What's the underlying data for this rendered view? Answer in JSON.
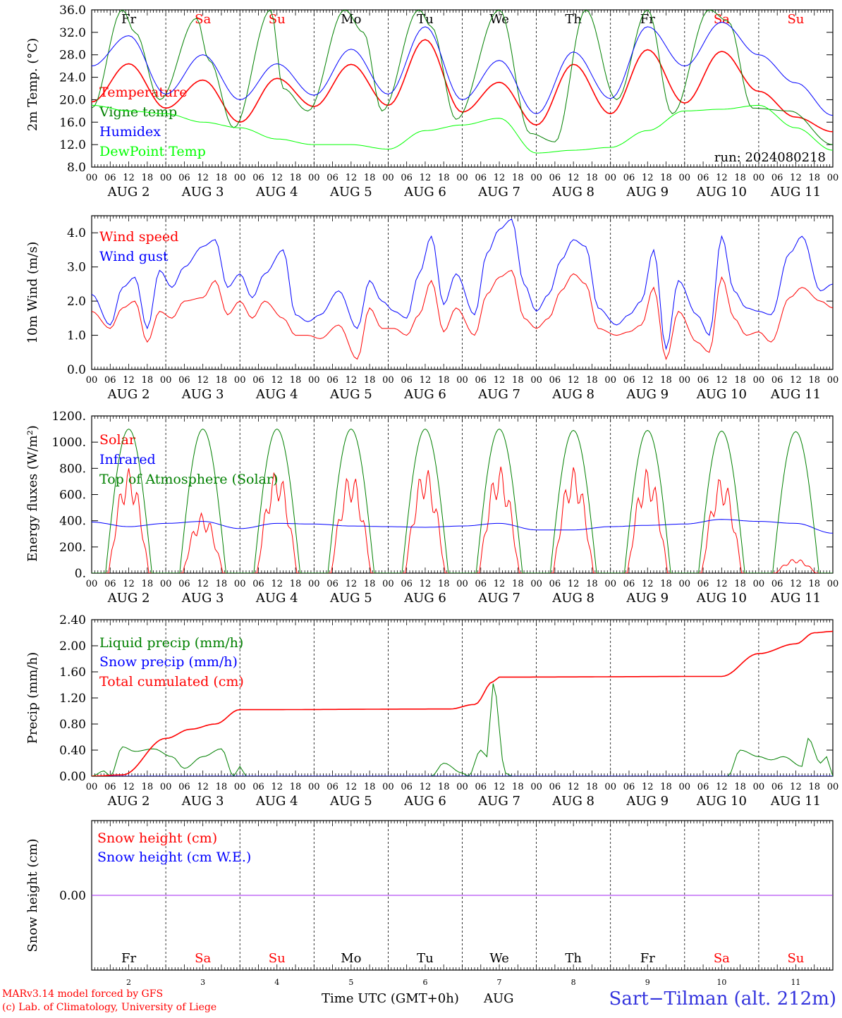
{
  "chart_data": [
    {
      "type": "line",
      "ylabel": "2m Temp. (°C)",
      "ylim": [
        8.0,
        36.0
      ],
      "yticks": [
        "8.0",
        "12.0",
        "16.0",
        "20.0",
        "24.0",
        "28.0",
        "32.0",
        "36.0"
      ],
      "xlim_hours": [
        0,
        240
      ],
      "annotation": "run: 2024080218",
      "series": [
        {
          "name": "Temperature",
          "color": "#ff0000",
          "x": [
            0,
            12,
            24,
            36,
            48,
            60,
            72,
            84,
            96,
            108,
            120,
            132,
            144,
            156,
            168,
            180,
            192,
            204,
            216,
            228,
            240
          ],
          "values": [
            19.6,
            26.4,
            18.5,
            23.5,
            16.0,
            23.8,
            18.8,
            26.3,
            19.0,
            30.7,
            17.8,
            23.1,
            15.5,
            26.3,
            17.5,
            28.9,
            19.4,
            28.6,
            21.5,
            16.9,
            14.3
          ]
        },
        {
          "name": "Vigne temp",
          "color": "#008000",
          "x": [
            0,
            10,
            14,
            22,
            34,
            38,
            46,
            58,
            62,
            70,
            82,
            88,
            94,
            106,
            110,
            118,
            132,
            142,
            150,
            160,
            170,
            180,
            188,
            200,
            206,
            214,
            226,
            240
          ],
          "values": [
            18.5,
            36.0,
            32.0,
            20.0,
            34.5,
            27.0,
            15.0,
            36.0,
            22.0,
            18.0,
            36.0,
            32.0,
            18.0,
            36.0,
            33.0,
            16.5,
            36.0,
            14.0,
            12.5,
            36.0,
            20.0,
            36.0,
            17.5,
            36.0,
            34.0,
            18.5,
            18.0,
            12.0
          ]
        },
        {
          "name": "Humidex",
          "color": "#0000ff",
          "x": [
            0,
            12,
            24,
            36,
            48,
            60,
            72,
            84,
            96,
            108,
            120,
            132,
            144,
            156,
            168,
            180,
            192,
            204,
            216,
            228,
            240
          ],
          "values": [
            26.0,
            31.4,
            21.0,
            28.0,
            20.0,
            26.4,
            20.8,
            29.0,
            21.0,
            33.0,
            20.0,
            27.0,
            17.5,
            28.5,
            20.2,
            33.0,
            26.0,
            33.8,
            28.0,
            23.0,
            17.2
          ]
        },
        {
          "name": "DewPoint Temp",
          "color": "#00ff00",
          "x": [
            0,
            12,
            24,
            36,
            48,
            60,
            72,
            84,
            96,
            108,
            120,
            132,
            144,
            156,
            168,
            180,
            192,
            204,
            216,
            228,
            240
          ],
          "values": [
            19.0,
            18.0,
            17.5,
            16.0,
            15.0,
            13.0,
            12.0,
            12.0,
            11.2,
            14.5,
            15.5,
            16.7,
            10.5,
            11.0,
            11.5,
            14.5,
            18.0,
            18.3,
            19.0,
            15.0,
            11.0
          ]
        }
      ]
    },
    {
      "type": "line",
      "ylabel": "10m Wind (m/s)",
      "ylim": [
        0.0,
        4.5
      ],
      "yticks": [
        "0.0",
        "1.0",
        "2.0",
        "3.0",
        "4.0"
      ],
      "xlim_hours": [
        0,
        240
      ],
      "series": [
        {
          "name": "Wind speed",
          "color": "#ff0000",
          "x": [
            0,
            6,
            10,
            14,
            18,
            22,
            26,
            30,
            36,
            40,
            44,
            48,
            52,
            56,
            62,
            66,
            70,
            74,
            80,
            86,
            90,
            94,
            98,
            102,
            106,
            110,
            114,
            118,
            124,
            128,
            132,
            136,
            140,
            144,
            148,
            152,
            156,
            160,
            164,
            170,
            174,
            178,
            182,
            186,
            190,
            196,
            200,
            204,
            208,
            212,
            216,
            220,
            226,
            230,
            236,
            240
          ],
          "values": [
            1.7,
            1.2,
            1.8,
            2.0,
            0.8,
            1.7,
            1.5,
            2.0,
            2.1,
            2.6,
            1.6,
            2.0,
            1.5,
            2.0,
            1.5,
            1.0,
            1.0,
            0.9,
            1.3,
            0.3,
            1.8,
            1.2,
            1.2,
            1.0,
            1.6,
            2.6,
            1.1,
            1.8,
            1.0,
            2.2,
            2.7,
            2.9,
            1.5,
            1.2,
            1.5,
            2.3,
            2.8,
            2.5,
            1.2,
            1.0,
            1.1,
            1.3,
            2.4,
            0.3,
            1.7,
            0.8,
            0.5,
            2.7,
            1.5,
            1.0,
            1.1,
            0.8,
            2.1,
            2.4,
            2.0,
            1.8
          ]
        },
        {
          "name": "Wind gust",
          "color": "#0000ff",
          "x": [
            0,
            6,
            10,
            14,
            18,
            22,
            26,
            30,
            36,
            40,
            44,
            48,
            52,
            56,
            62,
            66,
            70,
            74,
            80,
            86,
            90,
            94,
            98,
            102,
            106,
            110,
            114,
            118,
            124,
            128,
            132,
            136,
            140,
            144,
            148,
            152,
            156,
            160,
            164,
            170,
            174,
            178,
            182,
            186,
            190,
            196,
            200,
            204,
            208,
            212,
            216,
            220,
            226,
            230,
            236,
            240
          ],
          "values": [
            2.2,
            1.3,
            2.4,
            2.7,
            1.2,
            2.9,
            2.4,
            3.0,
            3.6,
            3.8,
            2.4,
            2.8,
            2.1,
            2.8,
            3.5,
            1.6,
            1.4,
            1.6,
            2.3,
            1.2,
            2.6,
            2.0,
            1.7,
            1.5,
            2.8,
            3.9,
            1.9,
            2.8,
            1.6,
            3.4,
            4.1,
            4.4,
            2.5,
            1.7,
            2.2,
            3.2,
            3.8,
            3.6,
            1.8,
            1.3,
            1.6,
            2.0,
            3.5,
            0.6,
            2.6,
            1.6,
            1.0,
            3.9,
            2.3,
            1.8,
            1.7,
            1.6,
            3.4,
            3.9,
            2.3,
            2.5
          ]
        }
      ]
    },
    {
      "type": "line",
      "ylabel": "Energy fluxes (W/m²)",
      "ylim": [
        0,
        1200
      ],
      "yticks": [
        "0.",
        "200.",
        "400.",
        "600.",
        "800.",
        "1000.",
        "1200."
      ],
      "xlim_hours": [
        0,
        240
      ],
      "series": [
        {
          "name": "Solar",
          "color": "#ff0000",
          "daily_peak": [
            800,
            460,
            790,
            770,
            810,
            820,
            810,
            800,
            740,
            110
          ]
        },
        {
          "name": "Infrared",
          "color": "#0000ff",
          "x": [
            0,
            12,
            24,
            36,
            48,
            60,
            72,
            84,
            96,
            108,
            120,
            132,
            144,
            156,
            168,
            180,
            192,
            204,
            216,
            228,
            240
          ],
          "values": [
            390,
            355,
            380,
            395,
            340,
            380,
            375,
            360,
            355,
            350,
            360,
            380,
            330,
            330,
            355,
            365,
            375,
            410,
            395,
            380,
            305
          ]
        },
        {
          "name": "Top of Atmosphere (Solar)",
          "color": "#008000",
          "daily_peak": [
            1100,
            1100,
            1100,
            1100,
            1100,
            1100,
            1090,
            1090,
            1085,
            1080
          ]
        }
      ]
    },
    {
      "type": "line",
      "ylabel": "Precip (mm/h)",
      "ylim": [
        0.0,
        2.4
      ],
      "yticks": [
        "0.00",
        "0.40",
        "0.80",
        "1.20",
        "1.60",
        "2.00",
        "2.40"
      ],
      "xlim_hours": [
        0,
        240
      ],
      "series": [
        {
          "name": "Liquid precip (mm/h)",
          "color": "#008000",
          "x": [
            0,
            4,
            6,
            10,
            14,
            20,
            26,
            30,
            36,
            42,
            46,
            48,
            50,
            110,
            114,
            120,
            122,
            126,
            128,
            130,
            134,
            136,
            206,
            210,
            216,
            220,
            224,
            230,
            232,
            236,
            238,
            240
          ],
          "values": [
            0,
            0.08,
            0,
            0.45,
            0.38,
            0.42,
            0.3,
            0.12,
            0.3,
            0.42,
            0,
            0.15,
            0,
            0,
            0.2,
            0.05,
            0,
            0.4,
            0.3,
            1.42,
            0.05,
            0,
            0,
            0.4,
            0.3,
            0.25,
            0.3,
            0.15,
            0.58,
            0.2,
            0.3,
            0
          ]
        },
        {
          "name": "Snow precip (mm/h)",
          "color": "#0000ff",
          "x": [
            0,
            240
          ],
          "values": [
            0,
            0
          ]
        },
        {
          "name": "Total cumulated (cm)",
          "color": "#ff0000",
          "x": [
            0,
            10,
            24,
            32,
            40,
            48,
            116,
            124,
            130,
            132,
            204,
            216,
            228,
            234,
            240
          ],
          "values": [
            0,
            0.02,
            0.58,
            0.72,
            0.8,
            1.02,
            1.03,
            1.1,
            1.45,
            1.52,
            1.53,
            1.88,
            2.03,
            2.2,
            2.22
          ]
        }
      ]
    },
    {
      "type": "line",
      "ylabel": "Snow height (cm)",
      "ylim": [
        -1.5,
        1.5
      ],
      "yticks": [
        "0.00"
      ],
      "xlim_hours": [
        0,
        240
      ],
      "series": [
        {
          "name": "Snow height (cm)",
          "color": "#ff0000",
          "x": [
            0,
            240
          ],
          "values": [
            0,
            0
          ]
        },
        {
          "name": "Snow height (cm W.E.)",
          "color": "#0000ff",
          "x": [
            0,
            240
          ],
          "values": [
            0,
            0
          ]
        }
      ]
    }
  ],
  "axis": {
    "hour_labels": [
      "00",
      "06",
      "12",
      "18"
    ],
    "end_label": "00",
    "dates": [
      "AUG  2",
      "AUG  3",
      "AUG  4",
      "AUG  5",
      "AUG  6",
      "AUG  7",
      "AUG  8",
      "AUG  9",
      "AUG 10",
      "AUG 11"
    ],
    "weekdays": [
      "Fr",
      "Sa",
      "Su",
      "Mo",
      "Tu",
      "We",
      "Th",
      "Fr",
      "Sa",
      "Su"
    ],
    "weekday_colors": [
      "#000000",
      "#ff0000",
      "#ff0000",
      "#000000",
      "#000000",
      "#000000",
      "#000000",
      "#000000",
      "#ff0000",
      "#ff0000"
    ],
    "day_numbers": [
      "2",
      "3",
      "4",
      "5",
      "6",
      "7",
      "8",
      "9",
      "10",
      "11"
    ]
  },
  "footer": {
    "model_line": "MARv3.14 model forced by GFS",
    "credit_line": "(c) Lab. of Climatology, University of Liege",
    "time_label": "Time UTC (GMT+0h)",
    "month_label": "AUG",
    "station": "Sart−Tilman (alt. 212m)",
    "model_color": "#ff0000",
    "station_color": "#3333dd"
  }
}
